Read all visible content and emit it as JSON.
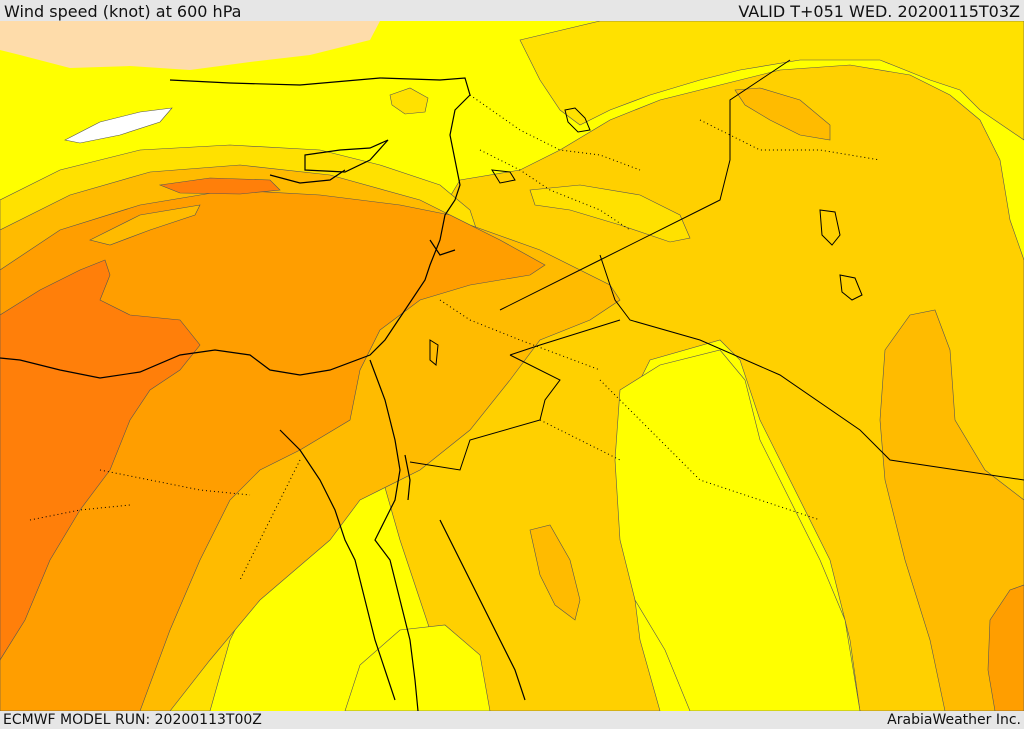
{
  "header": {
    "title": "Wind speed (knot) at 600 hPa",
    "valid": "VALID T+051 WED. 20200115T03Z"
  },
  "footer": {
    "model_run": "ECMWF MODEL RUN: 20200113T00Z",
    "credit": "ArabiaWeather Inc."
  },
  "colors": {
    "background": "#e6e6e6",
    "wind_very_light": "#fedcaa",
    "wind_white": "#ffffff",
    "wind_low": "#ffff00",
    "wind_low_mid": "#ffe100",
    "wind_mid": "#ffd000",
    "wind_mid_high": "#ffbb00",
    "wind_high": "#ff9e00",
    "wind_very_high": "#ff7f0a",
    "coastline": "#000000",
    "border": "#000000"
  },
  "map": {
    "region": "Eastern Mediterranean and Middle East",
    "variable": "Wind speed",
    "level_hpa": 600,
    "units": "knot"
  }
}
